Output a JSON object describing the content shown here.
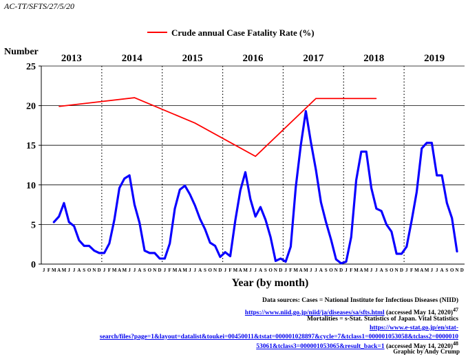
{
  "header": {
    "doc_id": "AC-TT/SFTS/27/5/20",
    "credit": "Graphic by Andy Crump"
  },
  "sources": {
    "line1": "Data sources: Cases = National Institute for Infectious Diseases (NIID)",
    "niid_link": "https://www.niid.go.jp/niid/ja/diseases/sa/sfts.html",
    "niid_accessed": "(accessed May 14, 2020)",
    "niid_ref": "47",
    "mortalities": "Mortalities =  s-Stat. Statistics of Japan. Vital Statistics",
    "estat_link_1": "https://www.e-stat.go.jp/en/stat-",
    "estat_link_2": "search/files?page=1&layout=datalist&toukei=00450011&tstat=000001028897&cycle=7&tclass1=000001053058&tclass2=0000010",
    "estat_link_3": "53061&tclass3=000001053065&result_back=1",
    "estat_accessed": "(accessed May 14, 2020)",
    "estat_ref": "48"
  },
  "colors": {
    "cases": "#0a00ff",
    "cfr": "#ff0000",
    "grid": "#000000",
    "link": "#0000ee"
  },
  "chart_data": {
    "type": "line",
    "legend_label": "Crude annual Case Fatality Rate (%)",
    "legend_position": "top-center",
    "ylabel": "Number",
    "xlabel": "Year  (by month)",
    "ylim": [
      0,
      25
    ],
    "yticks": [
      0,
      5,
      10,
      15,
      20,
      25
    ],
    "grid": {
      "horizontal": true,
      "year_dividers": "dotted"
    },
    "years": [
      "2013",
      "2014",
      "2015",
      "2016",
      "2017",
      "2018",
      "2019"
    ],
    "month_labels": [
      "J",
      "F",
      "M",
      "A",
      "M",
      "J",
      "J",
      "A",
      "S",
      "O",
      "N",
      "D"
    ],
    "series": [
      {
        "name": "",
        "kind": "monthly_cases",
        "start": "2013-01",
        "values": [
          null,
          null,
          5.3,
          6.0,
          7.7,
          5.3,
          4.8,
          3.0,
          2.3,
          2.3,
          1.7,
          1.4,
          1.4,
          2.6,
          5.6,
          9.6,
          10.8,
          11.2,
          7.5,
          5.2,
          1.7,
          1.4,
          1.4,
          0.7,
          0.7,
          2.6,
          7.0,
          9.4,
          9.9,
          8.8,
          7.4,
          5.7,
          4.4,
          2.7,
          2.3,
          0.9,
          1.5,
          1.0,
          5.5,
          9.3,
          11.6,
          8.2,
          6.0,
          7.2,
          5.6,
          3.4,
          0.4,
          0.7,
          0.3,
          2.2,
          9.7,
          15.0,
          19.3,
          15.4,
          11.9,
          7.8,
          5.3,
          3.1,
          0.6,
          0.1,
          0.3,
          3.4,
          10.6,
          14.2,
          14.2,
          9.6,
          7.0,
          6.7,
          5.0,
          4.1,
          1.3,
          1.3,
          2.2,
          5.5,
          9.1,
          14.6,
          15.3,
          15.3,
          11.2,
          11.2,
          7.7,
          5.8,
          1.6,
          null
        ]
      },
      {
        "name": "Crude annual Case Fatality Rate (%)",
        "kind": "annual_cfr",
        "points": [
          {
            "x": "2013-04",
            "y": 19.9
          },
          {
            "x": "2014-07",
            "y": 21.0
          },
          {
            "x": "2015-07",
            "y": 17.8
          },
          {
            "x": "2016-07",
            "y": 13.6
          },
          {
            "x": "2017-07",
            "y": 20.9
          },
          {
            "x": "2018-01",
            "y": 20.9
          },
          {
            "x": "2018-07",
            "y": 20.9
          }
        ]
      }
    ]
  }
}
